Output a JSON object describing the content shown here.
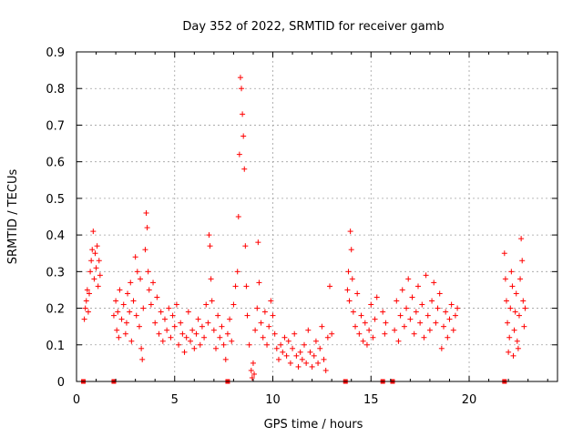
{
  "chart_data": {
    "type": "scatter",
    "title": "Day 352 of 2022, SRMTID for receiver gamb",
    "xlabel": "GPS time / hours",
    "ylabel": "SRMTID / TECUs",
    "xlim": [
      0,
      24.5
    ],
    "ylim": [
      0,
      0.9
    ],
    "xticks": [
      0,
      5,
      10,
      15,
      20
    ],
    "xtick_labels": [
      "0",
      "5",
      "10",
      "15",
      "20"
    ],
    "yticks": [
      0,
      0.1,
      0.2,
      0.3,
      0.4,
      0.5,
      0.6,
      0.7,
      0.8,
      0.9
    ],
    "ytick_labels": [
      "0",
      "0.1",
      "0.2",
      "0.3",
      "0.4",
      "0.5",
      "0.6",
      "0.7",
      "0.8",
      "0.9"
    ],
    "grid": true,
    "marker": "plus",
    "color": "#ff0000",
    "series": [
      {
        "name": "SRMTID",
        "points": [
          [
            0.4,
            0.17
          ],
          [
            0.45,
            0.2
          ],
          [
            0.5,
            0.22
          ],
          [
            0.55,
            0.25
          ],
          [
            0.6,
            0.19
          ],
          [
            0.65,
            0.24
          ],
          [
            0.7,
            0.3
          ],
          [
            0.75,
            0.33
          ],
          [
            0.8,
            0.36
          ],
          [
            0.85,
            0.41
          ],
          [
            0.9,
            0.28
          ],
          [
            0.95,
            0.35
          ],
          [
            1.0,
            0.31
          ],
          [
            1.05,
            0.37
          ],
          [
            1.1,
            0.26
          ],
          [
            1.15,
            0.33
          ],
          [
            1.2,
            0.29
          ],
          [
            1.9,
            0.18
          ],
          [
            2.0,
            0.22
          ],
          [
            2.05,
            0.14
          ],
          [
            2.1,
            0.19
          ],
          [
            2.15,
            0.12
          ],
          [
            2.2,
            0.25
          ],
          [
            2.3,
            0.17
          ],
          [
            2.4,
            0.21
          ],
          [
            2.5,
            0.13
          ],
          [
            2.55,
            0.16
          ],
          [
            2.6,
            0.24
          ],
          [
            2.7,
            0.19
          ],
          [
            2.75,
            0.27
          ],
          [
            2.8,
            0.11
          ],
          [
            2.9,
            0.22
          ],
          [
            3.0,
            0.34
          ],
          [
            3.05,
            0.18
          ],
          [
            3.1,
            0.3
          ],
          [
            3.2,
            0.15
          ],
          [
            3.25,
            0.28
          ],
          [
            3.3,
            0.09
          ],
          [
            3.35,
            0.06
          ],
          [
            3.4,
            0.2
          ],
          [
            3.5,
            0.36
          ],
          [
            3.55,
            0.46
          ],
          [
            3.6,
            0.42
          ],
          [
            3.65,
            0.3
          ],
          [
            3.7,
            0.25
          ],
          [
            3.8,
            0.21
          ],
          [
            3.9,
            0.27
          ],
          [
            4.0,
            0.16
          ],
          [
            4.1,
            0.23
          ],
          [
            4.2,
            0.13
          ],
          [
            4.3,
            0.19
          ],
          [
            4.4,
            0.11
          ],
          [
            4.5,
            0.17
          ],
          [
            4.6,
            0.14
          ],
          [
            4.7,
            0.2
          ],
          [
            4.8,
            0.12
          ],
          [
            4.9,
            0.18
          ],
          [
            5.0,
            0.15
          ],
          [
            5.1,
            0.21
          ],
          [
            5.2,
            0.1
          ],
          [
            5.3,
            0.16
          ],
          [
            5.4,
            0.13
          ],
          [
            5.5,
            0.08
          ],
          [
            5.6,
            0.12
          ],
          [
            5.7,
            0.19
          ],
          [
            5.8,
            0.11
          ],
          [
            5.9,
            0.14
          ],
          [
            6.0,
            0.09
          ],
          [
            6.1,
            0.13
          ],
          [
            6.2,
            0.17
          ],
          [
            6.3,
            0.1
          ],
          [
            6.4,
            0.15
          ],
          [
            6.5,
            0.12
          ],
          [
            6.6,
            0.21
          ],
          [
            6.7,
            0.16
          ],
          [
            6.75,
            0.4
          ],
          [
            6.8,
            0.37
          ],
          [
            6.85,
            0.28
          ],
          [
            6.9,
            0.22
          ],
          [
            7.0,
            0.14
          ],
          [
            7.1,
            0.09
          ],
          [
            7.2,
            0.18
          ],
          [
            7.3,
            0.12
          ],
          [
            7.4,
            0.15
          ],
          [
            7.5,
            0.1
          ],
          [
            7.6,
            0.06
          ],
          [
            7.7,
            0.13
          ],
          [
            7.8,
            0.17
          ],
          [
            7.9,
            0.11
          ],
          [
            8.0,
            0.21
          ],
          [
            8.1,
            0.26
          ],
          [
            8.2,
            0.3
          ],
          [
            8.25,
            0.45
          ],
          [
            8.3,
            0.62
          ],
          [
            8.35,
            0.83
          ],
          [
            8.4,
            0.8
          ],
          [
            8.45,
            0.73
          ],
          [
            8.5,
            0.67
          ],
          [
            8.55,
            0.58
          ],
          [
            8.6,
            0.37
          ],
          [
            8.65,
            0.26
          ],
          [
            8.7,
            0.18
          ],
          [
            8.8,
            0.1
          ],
          [
            8.9,
            0.03
          ],
          [
            8.95,
            0.01
          ],
          [
            9.0,
            0.05
          ],
          [
            9.05,
            0.02
          ],
          [
            9.1,
            0.14
          ],
          [
            9.2,
            0.2
          ],
          [
            9.25,
            0.38
          ],
          [
            9.3,
            0.27
          ],
          [
            9.4,
            0.16
          ],
          [
            9.5,
            0.12
          ],
          [
            9.6,
            0.19
          ],
          [
            9.7,
            0.1
          ],
          [
            9.8,
            0.15
          ],
          [
            9.9,
            0.22
          ],
          [
            10.0,
            0.18
          ],
          [
            10.1,
            0.13
          ],
          [
            10.2,
            0.09
          ],
          [
            10.3,
            0.06
          ],
          [
            10.4,
            0.1
          ],
          [
            10.5,
            0.08
          ],
          [
            10.6,
            0.12
          ],
          [
            10.7,
            0.07
          ],
          [
            10.8,
            0.11
          ],
          [
            10.9,
            0.05
          ],
          [
            11.0,
            0.09
          ],
          [
            11.1,
            0.13
          ],
          [
            11.2,
            0.07
          ],
          [
            11.3,
            0.04
          ],
          [
            11.4,
            0.08
          ],
          [
            11.5,
            0.06
          ],
          [
            11.6,
            0.1
          ],
          [
            11.7,
            0.05
          ],
          [
            11.8,
            0.14
          ],
          [
            11.9,
            0.08
          ],
          [
            12.0,
            0.04
          ],
          [
            12.1,
            0.07
          ],
          [
            12.2,
            0.11
          ],
          [
            12.3,
            0.05
          ],
          [
            12.4,
            0.09
          ],
          [
            12.5,
            0.15
          ],
          [
            12.6,
            0.06
          ],
          [
            12.7,
            0.03
          ],
          [
            12.8,
            0.12
          ],
          [
            12.9,
            0.26
          ],
          [
            13.0,
            0.13
          ],
          [
            13.8,
            0.25
          ],
          [
            13.85,
            0.3
          ],
          [
            13.9,
            0.22
          ],
          [
            13.95,
            0.41
          ],
          [
            14.0,
            0.36
          ],
          [
            14.05,
            0.28
          ],
          [
            14.1,
            0.19
          ],
          [
            14.2,
            0.15
          ],
          [
            14.3,
            0.24
          ],
          [
            14.4,
            0.13
          ],
          [
            14.5,
            0.18
          ],
          [
            14.6,
            0.11
          ],
          [
            14.7,
            0.16
          ],
          [
            14.8,
            0.1
          ],
          [
            14.9,
            0.14
          ],
          [
            15.0,
            0.21
          ],
          [
            15.1,
            0.12
          ],
          [
            15.2,
            0.17
          ],
          [
            15.3,
            0.23
          ],
          [
            15.6,
            0.19
          ],
          [
            15.7,
            0.13
          ],
          [
            15.75,
            0.16
          ],
          [
            16.2,
            0.14
          ],
          [
            16.3,
            0.22
          ],
          [
            16.4,
            0.11
          ],
          [
            16.5,
            0.18
          ],
          [
            16.6,
            0.25
          ],
          [
            16.7,
            0.15
          ],
          [
            16.8,
            0.2
          ],
          [
            16.9,
            0.28
          ],
          [
            17.0,
            0.17
          ],
          [
            17.1,
            0.23
          ],
          [
            17.2,
            0.13
          ],
          [
            17.3,
            0.19
          ],
          [
            17.4,
            0.26
          ],
          [
            17.5,
            0.16
          ],
          [
            17.6,
            0.21
          ],
          [
            17.7,
            0.12
          ],
          [
            17.8,
            0.29
          ],
          [
            17.9,
            0.18
          ],
          [
            18.0,
            0.14
          ],
          [
            18.1,
            0.22
          ],
          [
            18.2,
            0.27
          ],
          [
            18.3,
            0.16
          ],
          [
            18.4,
            0.2
          ],
          [
            18.5,
            0.24
          ],
          [
            18.6,
            0.09
          ],
          [
            18.7,
            0.15
          ],
          [
            18.8,
            0.19
          ],
          [
            18.9,
            0.12
          ],
          [
            19.0,
            0.17
          ],
          [
            19.1,
            0.21
          ],
          [
            19.2,
            0.14
          ],
          [
            19.3,
            0.18
          ],
          [
            19.4,
            0.2
          ],
          [
            21.8,
            0.35
          ],
          [
            21.85,
            0.28
          ],
          [
            21.9,
            0.22
          ],
          [
            21.95,
            0.16
          ],
          [
            22.0,
            0.08
          ],
          [
            22.05,
            0.12
          ],
          [
            22.1,
            0.2
          ],
          [
            22.15,
            0.3
          ],
          [
            22.2,
            0.26
          ],
          [
            22.25,
            0.07
          ],
          [
            22.3,
            0.14
          ],
          [
            22.35,
            0.19
          ],
          [
            22.4,
            0.24
          ],
          [
            22.45,
            0.11
          ],
          [
            22.5,
            0.09
          ],
          [
            22.55,
            0.18
          ],
          [
            22.6,
            0.28
          ],
          [
            22.65,
            0.39
          ],
          [
            22.7,
            0.33
          ],
          [
            22.75,
            0.22
          ],
          [
            22.8,
            0.15
          ],
          [
            22.85,
            0.2
          ]
        ]
      }
    ],
    "baseline_markers_x": [
      0.35,
      1.9,
      7.7,
      13.7,
      15.6,
      16.1,
      21.8
    ]
  }
}
